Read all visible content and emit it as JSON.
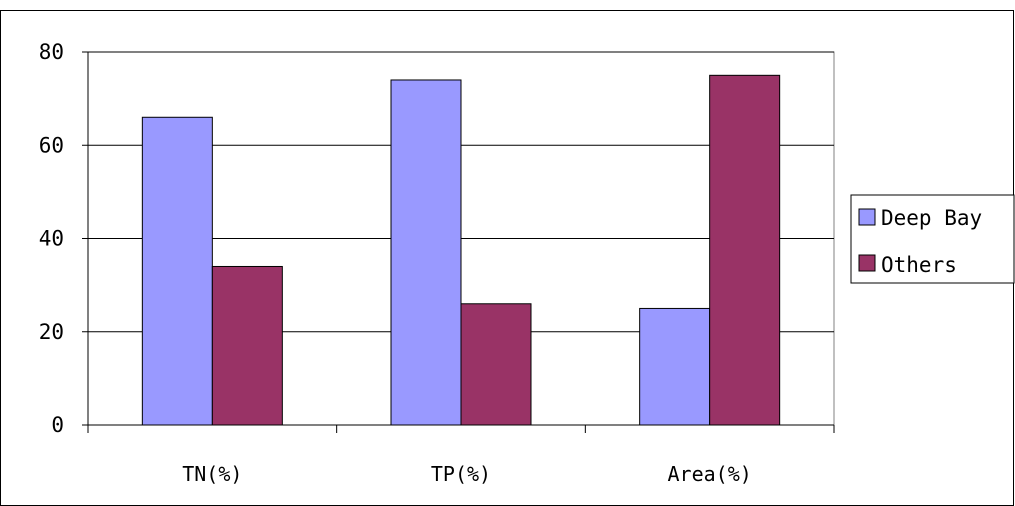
{
  "chart_data": {
    "type": "bar",
    "title": "",
    "xlabel": "",
    "ylabel": "",
    "categories": [
      "TN(%)",
      "TP(%)",
      "Area(%)"
    ],
    "series": [
      {
        "name": "Deep Bay",
        "values": [
          66,
          74,
          25
        ],
        "color": "#9999ff"
      },
      {
        "name": "Others",
        "values": [
          34,
          26,
          75
        ],
        "color": "#993366"
      }
    ],
    "ylim": [
      0,
      80
    ],
    "yticks": [
      0,
      20,
      40,
      60,
      80
    ],
    "ytick_labels": [
      "0",
      "20",
      "40",
      "60",
      "80"
    ],
    "grid": true,
    "legend_position": "right",
    "plot_background": "#ffffff",
    "plot_border_color": "#808080"
  }
}
